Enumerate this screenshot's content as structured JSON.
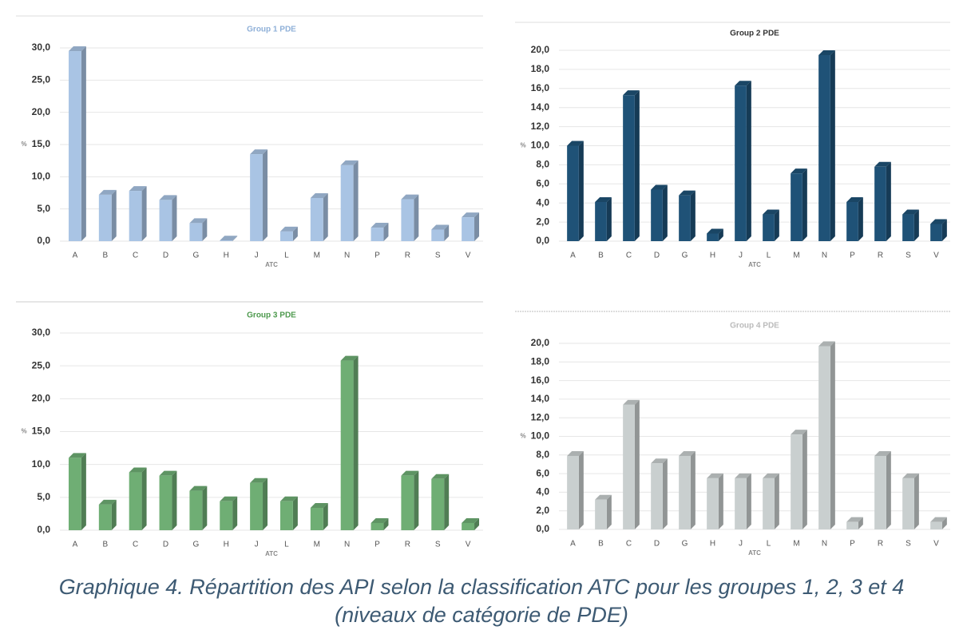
{
  "chart_data": [
    {
      "type": "bar",
      "title": "Group 1 PDE",
      "xlabel": "ATC",
      "ylabel": "%",
      "color": "#a9c4e4",
      "title_color": "#8fb0d8",
      "categories": [
        "A",
        "B",
        "C",
        "D",
        "G",
        "H",
        "J",
        "L",
        "M",
        "N",
        "P",
        "R",
        "S",
        "V"
      ],
      "values": [
        29.5,
        7.2,
        7.8,
        6.4,
        2.8,
        0.1,
        13.5,
        1.5,
        6.7,
        11.8,
        2.1,
        6.5,
        1.8,
        3.7
      ],
      "ylim": [
        0,
        30
      ],
      "yticks": [
        {
          "value": 0,
          "label": "0,0"
        },
        {
          "value": 5,
          "label": "5,0"
        },
        {
          "value": 10,
          "label": "10,0"
        },
        {
          "value": 15,
          "label": "15,0"
        },
        {
          "value": 20,
          "label": "20,0"
        },
        {
          "value": 25,
          "label": "25,0"
        },
        {
          "value": 30,
          "label": "30,0"
        }
      ],
      "grid": true
    },
    {
      "type": "bar",
      "title": "Group 2 PDE",
      "xlabel": "ATC",
      "ylabel": "%",
      "color": "#1f5277",
      "title_color": "#333333",
      "categories": [
        "A",
        "B",
        "C",
        "D",
        "G",
        "H",
        "J",
        "L",
        "M",
        "N",
        "P",
        "R",
        "S",
        "V"
      ],
      "values": [
        10.0,
        4.1,
        15.3,
        5.4,
        4.8,
        0.8,
        16.3,
        2.8,
        7.1,
        19.5,
        4.1,
        7.8,
        2.8,
        1.8
      ],
      "ylim": [
        0,
        20
      ],
      "yticks": [
        {
          "value": 0,
          "label": "0,0"
        },
        {
          "value": 2,
          "label": "2,0"
        },
        {
          "value": 4,
          "label": "4,0"
        },
        {
          "value": 6,
          "label": "6,0"
        },
        {
          "value": 8,
          "label": "8,0"
        },
        {
          "value": 10,
          "label": "10,0"
        },
        {
          "value": 12,
          "label": "12,0"
        },
        {
          "value": 14,
          "label": "14,0"
        },
        {
          "value": 16,
          "label": "16,0"
        },
        {
          "value": 18,
          "label": "18,0"
        },
        {
          "value": 20,
          "label": "20,0"
        }
      ],
      "grid": true
    },
    {
      "type": "bar",
      "title": "Group 3 PDE",
      "xlabel": "ATC",
      "ylabel": "%",
      "color": "#6fae74",
      "title_color": "#4e9a4e",
      "categories": [
        "A",
        "B",
        "C",
        "D",
        "G",
        "H",
        "J",
        "L",
        "M",
        "N",
        "P",
        "R",
        "S",
        "V"
      ],
      "values": [
        11.0,
        3.9,
        8.8,
        8.3,
        6.0,
        4.4,
        7.2,
        4.4,
        3.4,
        25.8,
        1.1,
        8.3,
        7.8,
        1.1
      ],
      "ylim": [
        0,
        30
      ],
      "yticks": [
        {
          "value": 0,
          "label": "0,0"
        },
        {
          "value": 5,
          "label": "5,0"
        },
        {
          "value": 10,
          "label": "10,0"
        },
        {
          "value": 15,
          "label": "15,0"
        },
        {
          "value": 20,
          "label": "20,0"
        },
        {
          "value": 25,
          "label": "25,0"
        },
        {
          "value": 30,
          "label": "30,0"
        }
      ],
      "grid": true
    },
    {
      "type": "bar",
      "title": "Group 4 PDE",
      "xlabel": "ATC",
      "ylabel": "%",
      "color": "#c9cfcf",
      "title_color": "#bbbbbb",
      "categories": [
        "A",
        "B",
        "C",
        "D",
        "G",
        "H",
        "J",
        "L",
        "M",
        "N",
        "P",
        "R",
        "S",
        "V"
      ],
      "values": [
        7.9,
        3.2,
        13.4,
        7.1,
        7.9,
        5.5,
        5.5,
        5.5,
        10.2,
        19.7,
        0.8,
        7.9,
        5.5,
        0.8
      ],
      "ylim": [
        0,
        20
      ],
      "yticks": [
        {
          "value": 0,
          "label": "0,0"
        },
        {
          "value": 2,
          "label": "2,0"
        },
        {
          "value": 4,
          "label": "4,0"
        },
        {
          "value": 6,
          "label": "6,0"
        },
        {
          "value": 8,
          "label": "8,0"
        },
        {
          "value": 10,
          "label": "10,0"
        },
        {
          "value": 12,
          "label": "12,0"
        },
        {
          "value": 14,
          "label": "14,0"
        },
        {
          "value": 16,
          "label": "16,0"
        },
        {
          "value": 18,
          "label": "18,0"
        },
        {
          "value": 20,
          "label": "20,0"
        }
      ],
      "grid": true
    }
  ],
  "caption": {
    "line1": "Graphique 4. Répartition des API selon la classification ATC pour les groupes 1, 2, 3 et 4",
    "line2": "(niveaux de catégorie de PDE)"
  }
}
